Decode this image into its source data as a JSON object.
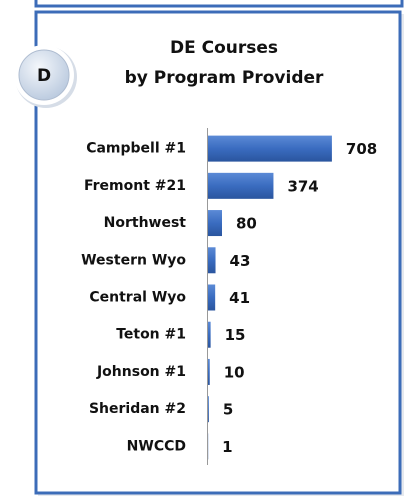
{
  "badge": "D",
  "chart_data": {
    "type": "bar",
    "orientation": "horizontal",
    "title": [
      "DE Courses",
      "by Program Provider"
    ],
    "categories": [
      "Campbell #1",
      "Fremont #21",
      "Northwest",
      "Western Wyo",
      "Central Wyo",
      "Teton #1",
      "Johnson #1",
      "Sheridan #2",
      "NWCCD"
    ],
    "values": [
      708,
      374,
      80,
      43,
      41,
      15,
      10,
      5,
      1
    ],
    "color": "#3a6cc0",
    "xlim": [
      0,
      800
    ]
  }
}
